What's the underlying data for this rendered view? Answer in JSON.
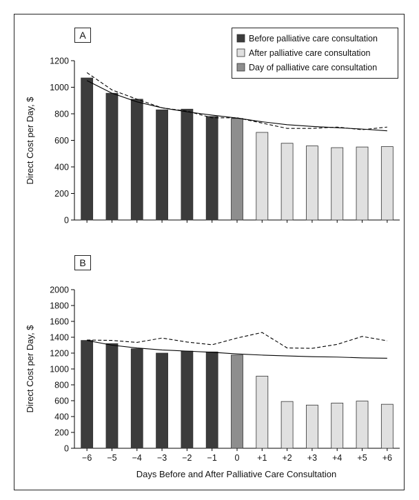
{
  "colors": {
    "before": "#3c3c3c",
    "day_of": "#8e8e8e",
    "after": "#e0e0e0"
  },
  "chart_data": [
    {
      "panel": "A",
      "type": "bar",
      "ylabel": "Direct Cost per Day, $",
      "ylim": [
        0,
        1200
      ],
      "yticks": [
        0,
        200,
        400,
        600,
        800,
        1000,
        1200
      ],
      "categories": [
        "−6",
        "−5",
        "−4",
        "−3",
        "−2",
        "−1",
        "0",
        "+1",
        "+2",
        "+3",
        "+4",
        "+5",
        "+6"
      ],
      "values": [
        1070,
        955,
        910,
        830,
        835,
        780,
        765,
        660,
        578,
        558,
        545,
        550,
        553
      ],
      "groups": [
        "before",
        "before",
        "before",
        "before",
        "before",
        "before",
        "day_of",
        "after",
        "after",
        "after",
        "after",
        "after",
        "after"
      ],
      "lines": [
        {
          "style": "solid",
          "values": [
            1050,
            955,
            890,
            845,
            815,
            790,
            768,
            740,
            718,
            705,
            695,
            685,
            672
          ]
        },
        {
          "style": "dashed",
          "values": [
            1110,
            980,
            910,
            845,
            820,
            770,
            770,
            730,
            690,
            690,
            700,
            680,
            700
          ]
        }
      ],
      "legend": {
        "position": "top-right",
        "items": [
          {
            "group": "before",
            "label": "Before palliative care consultation"
          },
          {
            "group": "after",
            "label": "After palliative care consultation"
          },
          {
            "group": "day_of",
            "label": "Day of palliative care consultation"
          }
        ]
      }
    },
    {
      "panel": "B",
      "type": "bar",
      "ylabel": "Direct Cost per Day, $",
      "xlabel": "Days Before and After Palliative Care Consultation",
      "ylim": [
        0,
        2000
      ],
      "yticks": [
        0,
        200,
        400,
        600,
        800,
        1000,
        1200,
        1400,
        1600,
        1800,
        2000
      ],
      "categories": [
        "−6",
        "−5",
        "−4",
        "−3",
        "−2",
        "−1",
        "0",
        "+1",
        "+2",
        "+3",
        "+4",
        "+5",
        "+6"
      ],
      "values": [
        1360,
        1320,
        1255,
        1200,
        1225,
        1215,
        1175,
        910,
        590,
        545,
        570,
        595,
        555
      ],
      "groups": [
        "before",
        "before",
        "before",
        "before",
        "before",
        "before",
        "day_of",
        "after",
        "after",
        "after",
        "after",
        "after",
        "after"
      ],
      "lines": [
        {
          "style": "solid",
          "values": [
            1360,
            1300,
            1265,
            1240,
            1225,
            1210,
            1190,
            1175,
            1165,
            1155,
            1150,
            1140,
            1135
          ]
        },
        {
          "style": "dashed",
          "values": [
            1365,
            1360,
            1335,
            1390,
            1340,
            1305,
            1390,
            1460,
            1265,
            1260,
            1310,
            1410,
            1355
          ]
        }
      ]
    }
  ]
}
